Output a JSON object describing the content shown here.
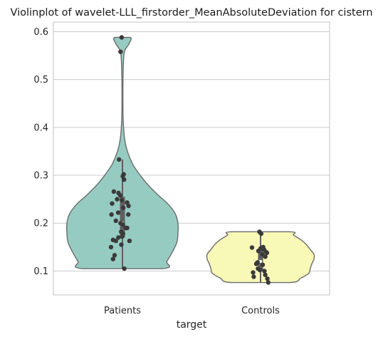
{
  "chart_data": {
    "type": "violin",
    "title": "Violinplot of wavelet-LLL_firstorder_MeanAbsoluteDeviation for cistern",
    "xlabel": "target",
    "ylabel": "",
    "categories": [
      "Patients",
      "Controls"
    ],
    "ylim": [
      0.05,
      0.62
    ],
    "yticks": [
      0.1,
      0.2,
      0.3,
      0.4,
      0.5,
      0.6
    ],
    "ytick_labels": [
      "0.1",
      "0.2",
      "0.3",
      "0.4",
      "0.5",
      "0.6"
    ],
    "grid": true,
    "colors": {
      "Patients": "#96cbc1",
      "Controls": "#f8f8b7",
      "outline": "#6b6b6b",
      "points": "#3a3a3a",
      "box": "#5f5f5f"
    },
    "series": [
      {
        "category": "Patients",
        "range": [
          0.105,
          0.588
        ],
        "box": {
          "q1": 0.17,
          "median": 0.2,
          "q3": 0.255,
          "whisker_low": 0.105,
          "whisker_high": 0.333
        },
        "density_profile": [
          [
            0.105,
            0.72
          ],
          [
            0.12,
            0.8
          ],
          [
            0.14,
            0.9
          ],
          [
            0.16,
            0.98
          ],
          [
            0.18,
            1.0
          ],
          [
            0.2,
            1.0
          ],
          [
            0.22,
            0.95
          ],
          [
            0.24,
            0.82
          ],
          [
            0.26,
            0.63
          ],
          [
            0.28,
            0.46
          ],
          [
            0.3,
            0.32
          ],
          [
            0.32,
            0.2
          ],
          [
            0.34,
            0.12
          ],
          [
            0.36,
            0.065
          ],
          [
            0.38,
            0.035
          ],
          [
            0.4,
            0.02
          ],
          [
            0.42,
            0.012
          ],
          [
            0.44,
            0.009
          ],
          [
            0.46,
            0.008
          ],
          [
            0.48,
            0.008
          ],
          [
            0.5,
            0.01
          ],
          [
            0.52,
            0.013
          ],
          [
            0.54,
            0.02
          ],
          [
            0.56,
            0.04
          ],
          [
            0.575,
            0.12
          ],
          [
            0.588,
            0.14
          ]
        ],
        "points": [
          {
            "j": -0.05,
            "y": 0.588
          },
          {
            "j": -0.12,
            "y": 0.558
          },
          {
            "j": -0.22,
            "y": 0.333
          },
          {
            "j": 0.08,
            "y": 0.302
          },
          {
            "j": 0.02,
            "y": 0.298
          },
          {
            "j": 0.1,
            "y": 0.291
          },
          {
            "j": -0.55,
            "y": 0.266
          },
          {
            "j": -0.25,
            "y": 0.263
          },
          {
            "j": -0.14,
            "y": 0.258
          },
          {
            "j": -0.34,
            "y": 0.25
          },
          {
            "j": -0.04,
            "y": 0.248
          },
          {
            "j": 0.3,
            "y": 0.243
          },
          {
            "j": -0.66,
            "y": 0.241
          },
          {
            "j": 0.39,
            "y": 0.236
          },
          {
            "j": 0.05,
            "y": 0.232
          },
          {
            "j": -0.27,
            "y": 0.222
          },
          {
            "j": -0.7,
            "y": 0.218
          },
          {
            "j": 0.37,
            "y": 0.218
          },
          {
            "j": -0.42,
            "y": 0.205
          },
          {
            "j": -0.12,
            "y": 0.2
          },
          {
            "j": 0.03,
            "y": 0.197
          },
          {
            "j": 0.22,
            "y": 0.19
          },
          {
            "j": 0.3,
            "y": 0.19
          },
          {
            "j": -0.08,
            "y": 0.182
          },
          {
            "j": 0.04,
            "y": 0.178
          },
          {
            "j": -0.02,
            "y": 0.172
          },
          {
            "j": -0.26,
            "y": 0.17
          },
          {
            "j": -0.6,
            "y": 0.165
          },
          {
            "j": -0.42,
            "y": 0.163
          },
          {
            "j": 0.45,
            "y": 0.163
          },
          {
            "j": -0.07,
            "y": 0.155
          },
          {
            "j": -0.73,
            "y": 0.15
          },
          {
            "j": -0.5,
            "y": 0.133
          },
          {
            "j": -0.6,
            "y": 0.125
          },
          {
            "j": 0.12,
            "y": 0.105
          }
        ]
      },
      {
        "category": "Controls",
        "range": [
          0.076,
          0.182
        ],
        "box": {
          "q1": 0.1,
          "median": 0.12,
          "q3": 0.145,
          "whisker_low": 0.076,
          "whisker_high": 0.182
        },
        "density_profile": [
          [
            0.076,
            0.55
          ],
          [
            0.085,
            0.75
          ],
          [
            0.095,
            0.9
          ],
          [
            0.105,
            0.93
          ],
          [
            0.115,
            0.96
          ],
          [
            0.125,
            1.0
          ],
          [
            0.135,
            1.0
          ],
          [
            0.145,
            0.93
          ],
          [
            0.155,
            0.86
          ],
          [
            0.165,
            0.76
          ],
          [
            0.175,
            0.62
          ],
          [
            0.182,
            0.55
          ]
        ],
        "points": [
          {
            "j": -0.05,
            "y": 0.182
          },
          {
            "j": 0.03,
            "y": 0.178
          },
          {
            "j": -0.4,
            "y": 0.149
          },
          {
            "j": 0.12,
            "y": 0.15
          },
          {
            "j": 0.0,
            "y": 0.147
          },
          {
            "j": 0.16,
            "y": 0.145
          },
          {
            "j": -0.1,
            "y": 0.142
          },
          {
            "j": 0.25,
            "y": 0.14
          },
          {
            "j": 0.3,
            "y": 0.138
          },
          {
            "j": 0.08,
            "y": 0.135
          },
          {
            "j": 0.22,
            "y": 0.13
          },
          {
            "j": -0.14,
            "y": 0.118
          },
          {
            "j": -0.2,
            "y": 0.115
          },
          {
            "j": 0.1,
            "y": 0.113
          },
          {
            "j": -0.12,
            "y": 0.105
          },
          {
            "j": -0.03,
            "y": 0.102
          },
          {
            "j": 0.18,
            "y": 0.1
          },
          {
            "j": -0.35,
            "y": 0.097
          },
          {
            "j": 0.22,
            "y": 0.092
          },
          {
            "j": -0.32,
            "y": 0.088
          },
          {
            "j": 0.32,
            "y": 0.084
          },
          {
            "j": 0.36,
            "y": 0.076
          }
        ]
      }
    ]
  }
}
